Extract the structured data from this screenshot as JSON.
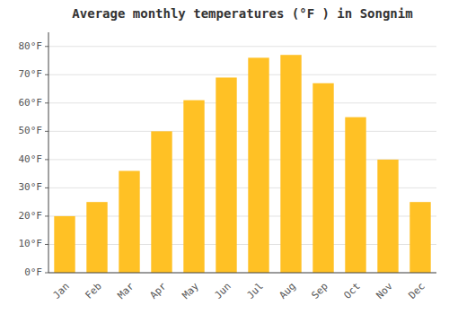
{
  "chart_data": {
    "type": "bar",
    "title": "Average monthly temperatures (°F ) in Songnim",
    "categories": [
      "Jan",
      "Feb",
      "Mar",
      "Apr",
      "May",
      "Jun",
      "Jul",
      "Aug",
      "Sep",
      "Oct",
      "Nov",
      "Dec"
    ],
    "values": [
      20,
      25,
      36,
      50,
      61,
      69,
      76,
      77,
      67,
      55,
      40,
      25
    ],
    "color": "#FFC125",
    "ylim": [
      0,
      85
    ],
    "yticks": [
      {
        "value": 0,
        "label": "0°F"
      },
      {
        "value": 10,
        "label": "10°F"
      },
      {
        "value": 20,
        "label": "20°F"
      },
      {
        "value": 30,
        "label": "30°F"
      },
      {
        "value": 40,
        "label": "40°F"
      },
      {
        "value": 50,
        "label": "50°F"
      },
      {
        "value": 60,
        "label": "60°F"
      },
      {
        "value": 70,
        "label": "70°F"
      },
      {
        "value": 80,
        "label": "80°F"
      }
    ],
    "grid": true
  }
}
